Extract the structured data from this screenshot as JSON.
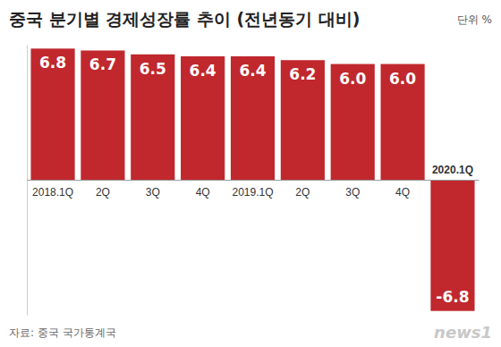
{
  "chart_data": {
    "type": "bar",
    "title": "중국 분기별 경제성장률 추이 (전년동기 대비)",
    "unit": "단위 %",
    "source": "자료: 중국 국가통계국",
    "credit": "news1",
    "categories": [
      "2018.1Q",
      "2Q",
      "3Q",
      "4Q",
      "2019.1Q",
      "2Q",
      "3Q",
      "4Q",
      "2020.1Q"
    ],
    "values": [
      6.8,
      6.7,
      6.5,
      6.4,
      6.4,
      6.2,
      6.0,
      6.0,
      -6.8
    ],
    "value_labels": [
      "6.8",
      "6.7",
      "6.5",
      "6.4",
      "6.4",
      "6.2",
      "6.0",
      "6.0",
      "-6.8"
    ],
    "color": "#c0282d",
    "ylim": [
      -7,
      7
    ],
    "grid": false,
    "data_labels": true,
    "tick_labels": "x"
  }
}
